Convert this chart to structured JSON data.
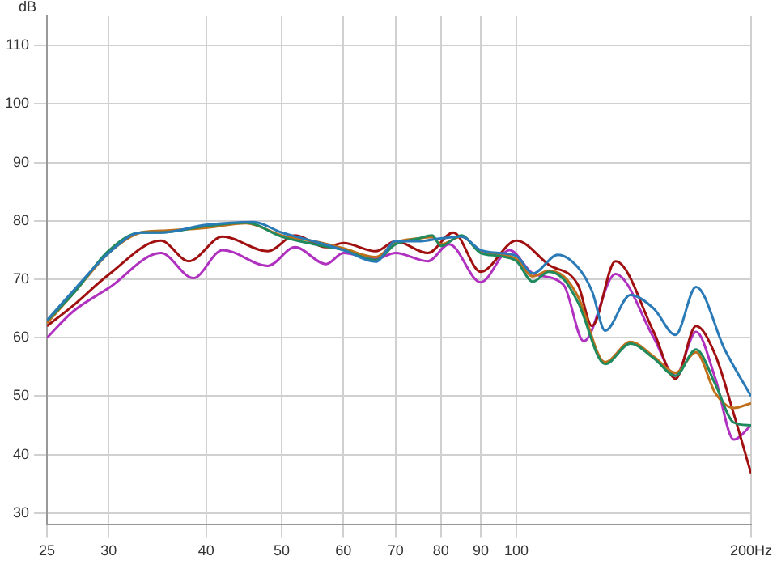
{
  "chart_data": {
    "type": "line",
    "ylabel": "dB",
    "log": "x",
    "grid": true,
    "xlim": [
      25,
      200
    ],
    "xticks": [
      25,
      30,
      40,
      50,
      60,
      70,
      80,
      90,
      100,
      {
        "value": 200,
        "label": "200Hz"
      }
    ],
    "ylim": [
      28,
      115
    ],
    "yticks": [
      30,
      40,
      50,
      60,
      70,
      80,
      90,
      100,
      110
    ],
    "series": [
      {
        "color": "#2a7ab8",
        "x": [
          25,
          27,
          30,
          33,
          35,
          40,
          46,
          50,
          55,
          60,
          66,
          70,
          75,
          80,
          85,
          90,
          95,
          100,
          105,
          113,
          120,
          125,
          130,
          140,
          150,
          160,
          170,
          185,
          200
        ],
        "values": [
          63,
          68,
          74.5,
          78,
          78,
          79.3,
          79.8,
          78,
          76.5,
          75,
          73,
          76.5,
          76.5,
          77,
          77.3,
          75,
          74.5,
          74,
          71,
          74.2,
          72,
          68,
          61.2,
          67.3,
          65,
          60.5,
          68.7,
          58,
          50
        ]
      },
      {
        "color": "#1f8a5e",
        "x": [
          25,
          27,
          30,
          33,
          35,
          40,
          45,
          50,
          55,
          60,
          66,
          70,
          75,
          78,
          80,
          85,
          90,
          95,
          100,
          105,
          110,
          115,
          120,
          130,
          140,
          150,
          160,
          170,
          180,
          190,
          200
        ],
        "values": [
          62.9,
          67.5,
          74.9,
          78,
          78,
          79.1,
          79.7,
          77.3,
          76,
          75,
          73.3,
          76,
          77,
          77.5,
          75.7,
          77.5,
          74.5,
          74,
          73.1,
          69.6,
          71.3,
          70,
          66,
          55.5,
          59,
          56.5,
          53.5,
          58,
          52,
          45.5,
          45
        ]
      },
      {
        "color": "#c0701a",
        "x": [
          25,
          27,
          30,
          33,
          35,
          40,
          45,
          50,
          55,
          60,
          66,
          70,
          75,
          78,
          80,
          85,
          90,
          95,
          100,
          105,
          110,
          115,
          120,
          130,
          140,
          150,
          160,
          170,
          180,
          190,
          200
        ],
        "values": [
          62.5,
          67.5,
          74.5,
          78,
          78.3,
          78.8,
          79.6,
          77.5,
          76.5,
          75.3,
          73.8,
          76.3,
          77,
          77.2,
          76,
          77.3,
          74.8,
          74.3,
          73.5,
          70.5,
          71.5,
          70.5,
          67,
          55.8,
          59.3,
          56.8,
          54,
          57.5,
          50.5,
          48,
          48.8
        ]
      },
      {
        "color": "#a01010",
        "x": [
          25,
          27,
          30,
          35,
          38,
          42,
          48,
          52,
          57,
          60,
          66,
          70,
          77,
          83,
          90,
          100,
          110,
          120,
          125,
          134,
          150,
          160,
          170,
          180,
          190,
          200
        ],
        "values": [
          62,
          65.5,
          70.8,
          76.6,
          73.1,
          77.3,
          74.8,
          77.5,
          75.5,
          76.2,
          74.8,
          76.5,
          74.5,
          78,
          71.3,
          76.6,
          72.5,
          69,
          62,
          73.1,
          61,
          53,
          62,
          57,
          47,
          36.8
        ]
      },
      {
        "color": "#b030c0",
        "x": [
          25,
          27,
          30,
          35,
          38.5,
          42,
          48,
          52,
          57,
          60,
          66,
          70,
          77,
          82,
          90,
          98,
          105,
          115,
          122,
          134,
          150,
          160,
          170,
          180,
          190,
          200
        ],
        "values": [
          60,
          64.5,
          68.5,
          74.5,
          70.2,
          75,
          72.3,
          75.5,
          72.6,
          74.5,
          73.5,
          74.5,
          73.1,
          76,
          69.5,
          75,
          71,
          69,
          59.4,
          70.9,
          60,
          53.5,
          61,
          53,
          42.6,
          45
        ]
      }
    ]
  }
}
